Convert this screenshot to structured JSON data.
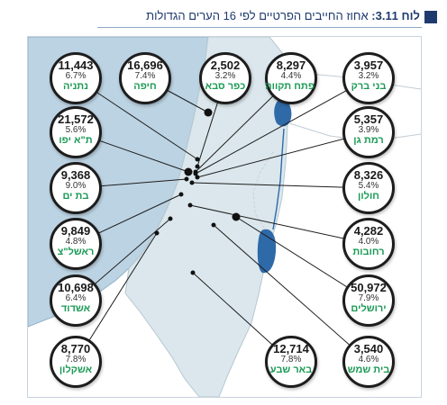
{
  "header": {
    "table_label": "לוח 3.11:",
    "title": "אחוז החייבים הפרטיים לפי 16 הערים הגדולות"
  },
  "colors": {
    "sea": "#bcd3e3",
    "land": "#dbe7ec",
    "water": "#2f6aa8",
    "city_name": "#1a9a55",
    "header": "#1f3a6e"
  },
  "cities": [
    {
      "id": "netanya",
      "value": "11,443",
      "percent": "6.7%",
      "name": "נתניה"
    },
    {
      "id": "haifa",
      "value": "16,696",
      "percent": "7.4%",
      "name": "חיפה"
    },
    {
      "id": "kfar-saba",
      "value": "2,502",
      "percent": "3.2%",
      "name": "כפר סבא"
    },
    {
      "id": "petah-tikva",
      "value": "8,297",
      "percent": "4.4%",
      "name": "פתח תקווה"
    },
    {
      "id": "bnei-brak",
      "value": "3,957",
      "percent": "3.2%",
      "name": "בני ברק"
    },
    {
      "id": "tel-aviv",
      "value": "21,572",
      "percent": "5.6%",
      "name": "ת\"א יפו"
    },
    {
      "id": "ramat-gan",
      "value": "5,357",
      "percent": "3.9%",
      "name": "רמת גן"
    },
    {
      "id": "bat-yam",
      "value": "9,368",
      "percent": "9.0%",
      "name": "בת ים"
    },
    {
      "id": "holon",
      "value": "8,326",
      "percent": "5.4%",
      "name": "חולון"
    },
    {
      "id": "rishon",
      "value": "9,849",
      "percent": "4.8%",
      "name": "ראשל\"צ"
    },
    {
      "id": "rehovot",
      "value": "4,282",
      "percent": "4.0%",
      "name": "רחובות"
    },
    {
      "id": "ashdod",
      "value": "10,698",
      "percent": "6.4%",
      "name": "אשדוד"
    },
    {
      "id": "jerusalem",
      "value": "50,972",
      "percent": "7.9%",
      "name": "ירושלים"
    },
    {
      "id": "ashkelon",
      "value": "8,770",
      "percent": "7.8%",
      "name": "אשקלון"
    },
    {
      "id": "beer-sheva",
      "value": "12,714",
      "percent": "7.8%",
      "name": "באר שבע"
    },
    {
      "id": "beit-shemesh",
      "value": "3,540",
      "percent": "4.6%",
      "name": "בית שמש"
    }
  ]
}
